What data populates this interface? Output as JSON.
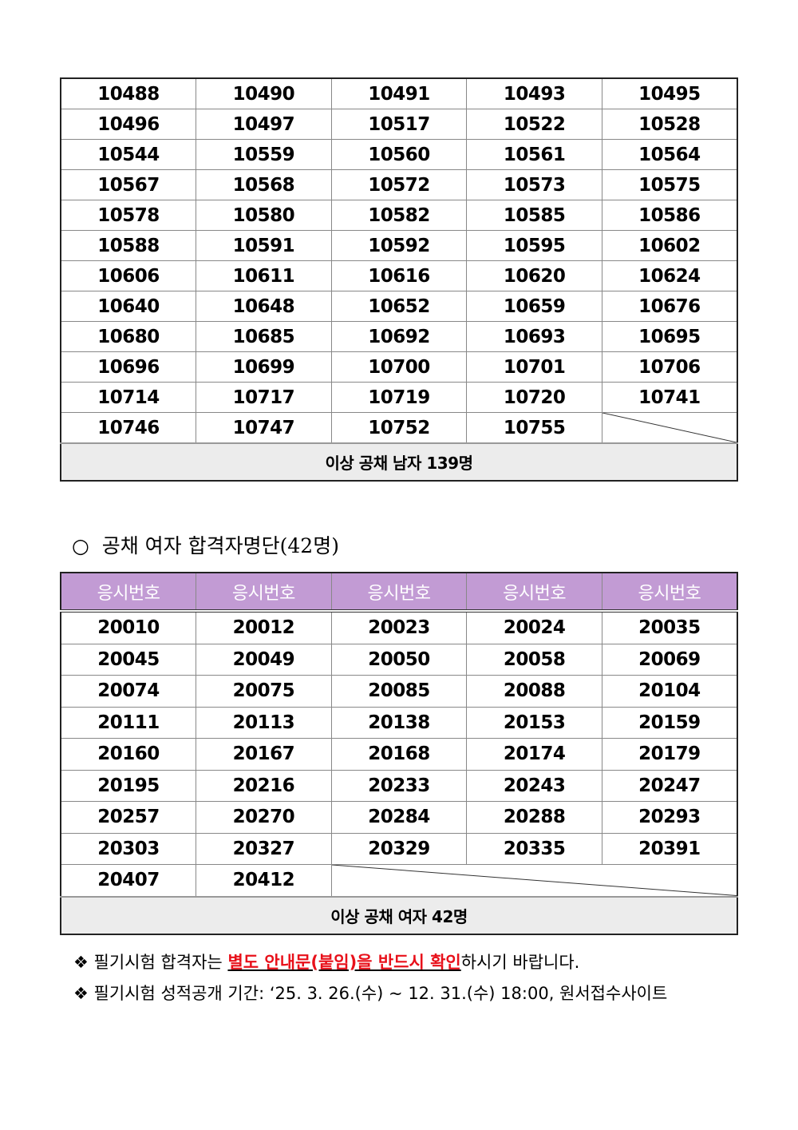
{
  "male_table": {
    "rows": [
      [
        "10488",
        "10490",
        "10491",
        "10493",
        "10495"
      ],
      [
        "10496",
        "10497",
        "10517",
        "10522",
        "10528"
      ],
      [
        "10544",
        "10559",
        "10560",
        "10561",
        "10564"
      ],
      [
        "10567",
        "10568",
        "10572",
        "10573",
        "10575"
      ],
      [
        "10578",
        "10580",
        "10582",
        "10585",
        "10586"
      ],
      [
        "10588",
        "10591",
        "10592",
        "10595",
        "10602"
      ],
      [
        "10606",
        "10611",
        "10616",
        "10620",
        "10624"
      ],
      [
        "10640",
        "10648",
        "10652",
        "10659",
        "10676"
      ],
      [
        "10680",
        "10685",
        "10692",
        "10693",
        "10695"
      ],
      [
        "10696",
        "10699",
        "10700",
        "10701",
        "10706"
      ],
      [
        "10714",
        "10717",
        "10719",
        "10720",
        "10741"
      ],
      [
        "10746",
        "10747",
        "10752",
        "10755"
      ]
    ],
    "summary": "이상 공채 남자 139명"
  },
  "female_section": {
    "bullet": "○",
    "title": "공채 여자 합격자명단(42명)"
  },
  "female_table": {
    "header_color": "#c29bd4",
    "headers": [
      "응시번호",
      "응시번호",
      "응시번호",
      "응시번호",
      "응시번호"
    ],
    "rows": [
      [
        "20010",
        "20012",
        "20023",
        "20024",
        "20035"
      ],
      [
        "20045",
        "20049",
        "20050",
        "20058",
        "20069"
      ],
      [
        "20074",
        "20075",
        "20085",
        "20088",
        "20104"
      ],
      [
        "20111",
        "20113",
        "20138",
        "20153",
        "20159"
      ],
      [
        "20160",
        "20167",
        "20168",
        "20174",
        "20179"
      ],
      [
        "20195",
        "20216",
        "20233",
        "20243",
        "20247"
      ],
      [
        "20257",
        "20270",
        "20284",
        "20288",
        "20293"
      ],
      [
        "20303",
        "20327",
        "20329",
        "20335",
        "20391"
      ],
      [
        "20407",
        "20412"
      ]
    ],
    "summary": "이상 공채 여자 42명"
  },
  "notes": {
    "bullet": "❖",
    "note1_pre": "필기시험 합격자는 ",
    "note1_emph": "별도 안내문(붙임)을 반드시 확인",
    "note1_post": "하시기 바랍니다.",
    "note2": "필기시험 성적공개 기간: ‘25. 3. 26.(수) ~ 12. 31.(수) 18:00, 원서접수사이트"
  }
}
